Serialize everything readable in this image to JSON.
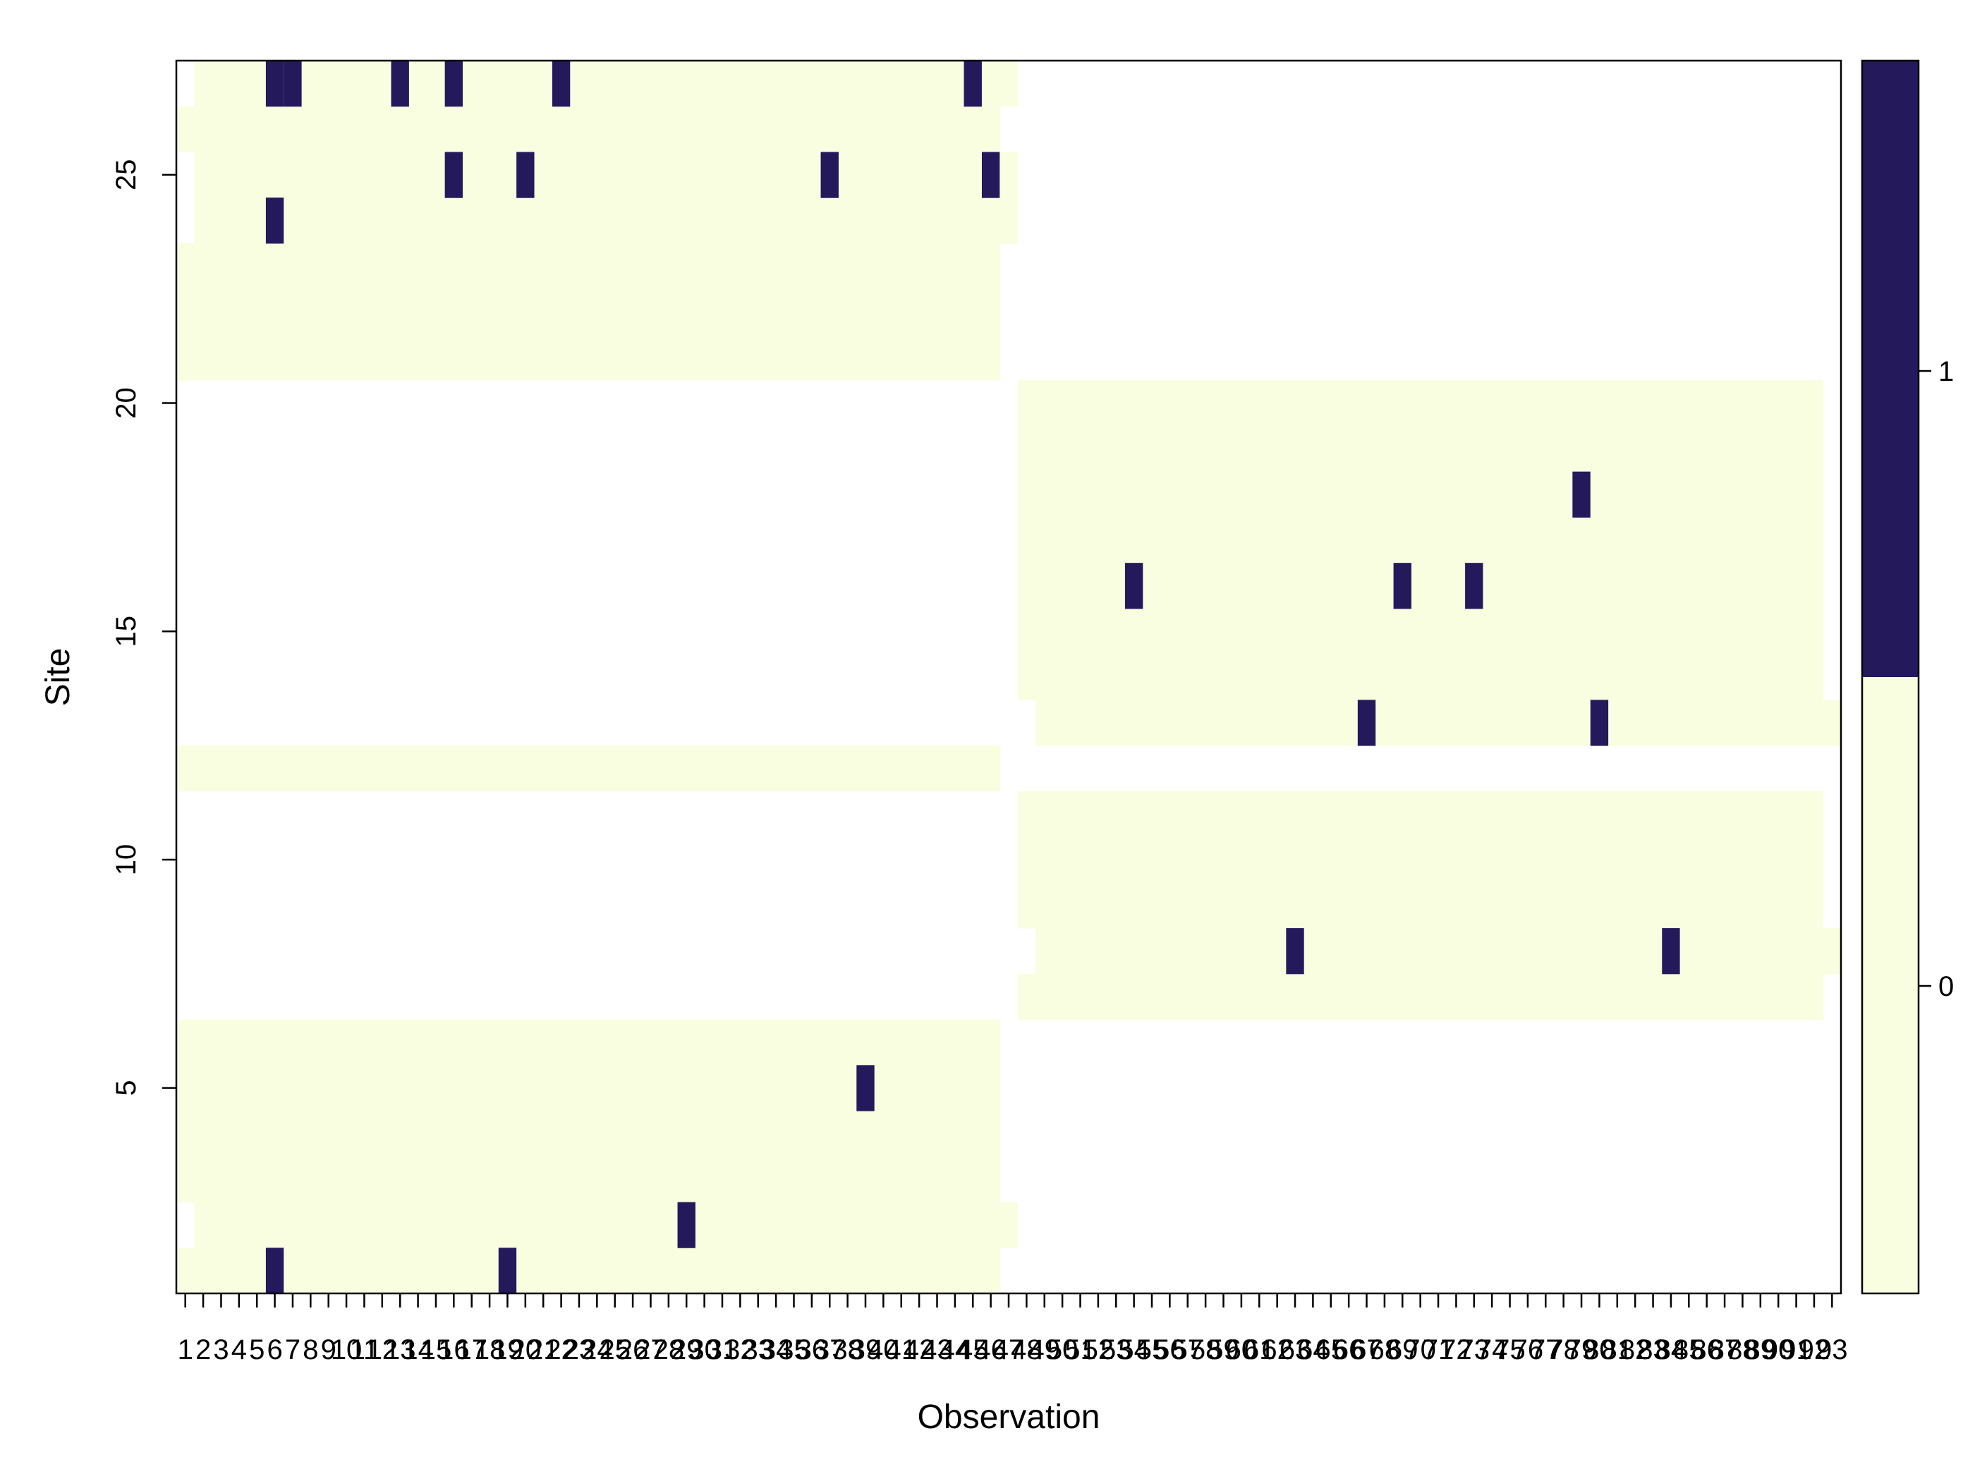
{
  "chart_data": {
    "type": "heatmap",
    "title": "",
    "xlabel": "Observation",
    "ylabel": "Site",
    "x_categories": [
      "1",
      "2",
      "3",
      "4",
      "5",
      "6",
      "7",
      "8",
      "9",
      "10",
      "11",
      "12",
      "13",
      "14",
      "15",
      "16",
      "17",
      "18",
      "19",
      "20",
      "21",
      "22",
      "23",
      "24",
      "25",
      "26",
      "27",
      "28",
      "29",
      "30",
      "31",
      "32",
      "33",
      "34",
      "35",
      "36",
      "37",
      "38",
      "39",
      "40",
      "41",
      "42",
      "43",
      "44",
      "45",
      "46",
      "47",
      "48",
      "49",
      "50",
      "51",
      "52",
      "53",
      "54",
      "55",
      "56",
      "57",
      "58",
      "59",
      "60",
      "61",
      "62",
      "63",
      "64",
      "65",
      "66",
      "67",
      "68",
      "69",
      "70",
      "71",
      "72",
      "73",
      "74",
      "75",
      "76",
      "77",
      "78",
      "79",
      "80",
      "81",
      "82",
      "83",
      "84",
      "85",
      "86",
      "87",
      "88",
      "89",
      "90",
      "91",
      "92",
      "93"
    ],
    "y_range": [
      1,
      27
    ],
    "y_ticks": [
      "5",
      "10",
      "15",
      "20",
      "25"
    ],
    "legend_ticks": [
      "0",
      "1"
    ],
    "legend_position": "right",
    "colors": {
      "zero": "#fafee0",
      "one": "#241a5b",
      "missing": "#ffffff"
    },
    "observed_ranges": [
      {
        "site": 1,
        "from": 1,
        "to": 46
      },
      {
        "site": 2,
        "from": 2,
        "to": 47
      },
      {
        "site": 3,
        "from": 1,
        "to": 46
      },
      {
        "site": 4,
        "from": 1,
        "to": 46
      },
      {
        "site": 5,
        "from": 1,
        "to": 46
      },
      {
        "site": 6,
        "from": 1,
        "to": 46
      },
      {
        "site": 7,
        "from": 48,
        "to": 92
      },
      {
        "site": 8,
        "from": 49,
        "to": 93
      },
      {
        "site": 9,
        "from": 48,
        "to": 92
      },
      {
        "site": 10,
        "from": 48,
        "to": 92
      },
      {
        "site": 11,
        "from": 48,
        "to": 92
      },
      {
        "site": 12,
        "from": 1,
        "to": 46
      },
      {
        "site": 13,
        "from": 49,
        "to": 93
      },
      {
        "site": 14,
        "from": 48,
        "to": 92
      },
      {
        "site": 15,
        "from": 48,
        "to": 92
      },
      {
        "site": 16,
        "from": 48,
        "to": 92
      },
      {
        "site": 17,
        "from": 48,
        "to": 92
      },
      {
        "site": 18,
        "from": 48,
        "to": 92
      },
      {
        "site": 19,
        "from": 48,
        "to": 92
      },
      {
        "site": 20,
        "from": 48,
        "to": 92
      },
      {
        "site": 21,
        "from": 1,
        "to": 46
      },
      {
        "site": 22,
        "from": 1,
        "to": 46
      },
      {
        "site": 23,
        "from": 1,
        "to": 46
      },
      {
        "site": 24,
        "from": 2,
        "to": 47
      },
      {
        "site": 25,
        "from": 2,
        "to": 47
      },
      {
        "site": 26,
        "from": 1,
        "to": 46
      },
      {
        "site": 27,
        "from": 2,
        "to": 47
      }
    ],
    "detections": [
      {
        "site": 1,
        "obs": 6
      },
      {
        "site": 1,
        "obs": 19
      },
      {
        "site": 2,
        "obs": 29
      },
      {
        "site": 5,
        "obs": 39
      },
      {
        "site": 8,
        "obs": 63
      },
      {
        "site": 8,
        "obs": 84
      },
      {
        "site": 13,
        "obs": 67
      },
      {
        "site": 13,
        "obs": 80
      },
      {
        "site": 16,
        "obs": 54
      },
      {
        "site": 16,
        "obs": 69
      },
      {
        "site": 16,
        "obs": 73
      },
      {
        "site": 18,
        "obs": 79
      },
      {
        "site": 24,
        "obs": 6
      },
      {
        "site": 25,
        "obs": 16
      },
      {
        "site": 25,
        "obs": 20
      },
      {
        "site": 25,
        "obs": 37
      },
      {
        "site": 25,
        "obs": 46
      },
      {
        "site": 27,
        "obs": 6
      },
      {
        "site": 27,
        "obs": 7
      },
      {
        "site": 27,
        "obs": 13
      },
      {
        "site": 27,
        "obs": 16
      },
      {
        "site": 27,
        "obs": 22
      },
      {
        "site": 27,
        "obs": 45
      }
    ]
  }
}
